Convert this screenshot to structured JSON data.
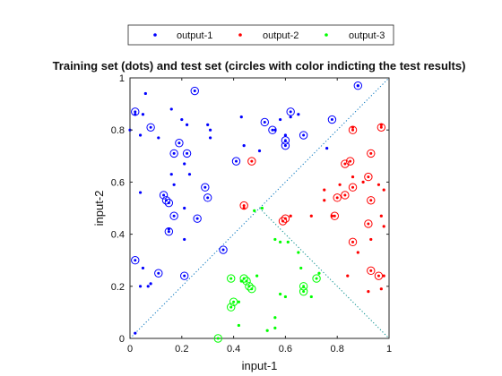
{
  "chart_data": {
    "type": "scatter",
    "title": "Training set (dots) and test set (circles with color indicting the test results)",
    "xlabel": "input-1",
    "ylabel": "input-2",
    "xlim": [
      0,
      1
    ],
    "ylim": [
      0,
      1
    ],
    "xticks": [
      "0",
      "0.2",
      "0.4",
      "0.6",
      "0.8",
      "1"
    ],
    "yticks": [
      "0",
      "0.2",
      "0.4",
      "0.6",
      "0.8",
      "1"
    ],
    "legend_position": "top-center",
    "grid": false,
    "series": [
      {
        "name": "output-1",
        "color": "#0000ff",
        "training": [
          [
            0.0,
            0.8
          ],
          [
            0.02,
            0.86
          ],
          [
            0.05,
            0.86
          ],
          [
            0.06,
            0.94
          ],
          [
            0.04,
            0.78
          ],
          [
            0.11,
            0.77
          ],
          [
            0.16,
            0.88
          ],
          [
            0.17,
            0.59
          ],
          [
            0.16,
            0.63
          ],
          [
            0.2,
            0.84
          ],
          [
            0.22,
            0.82
          ],
          [
            0.21,
            0.67
          ],
          [
            0.23,
            0.63
          ],
          [
            0.21,
            0.5
          ],
          [
            0.21,
            0.38
          ],
          [
            0.3,
            0.82
          ],
          [
            0.31,
            0.77
          ],
          [
            0.31,
            0.8
          ],
          [
            0.15,
            0.42
          ],
          [
            0.04,
            0.56
          ],
          [
            0.05,
            0.27
          ],
          [
            0.08,
            0.21
          ],
          [
            0.04,
            0.2
          ],
          [
            0.07,
            0.2
          ],
          [
            0.02,
            0.02
          ],
          [
            0.43,
            0.85
          ],
          [
            0.44,
            0.74
          ],
          [
            0.5,
            0.72
          ],
          [
            0.56,
            0.8
          ],
          [
            0.58,
            0.84
          ],
          [
            0.6,
            0.78
          ],
          [
            0.62,
            0.85
          ],
          [
            0.65,
            0.86
          ],
          [
            0.76,
            0.73
          ],
          [
            0.88,
            0.97
          ]
        ],
        "test": [
          [
            0.02,
            0.87
          ],
          [
            0.08,
            0.81
          ],
          [
            0.25,
            0.95
          ],
          [
            0.13,
            0.55
          ],
          [
            0.14,
            0.53
          ],
          [
            0.15,
            0.52
          ],
          [
            0.19,
            0.75
          ],
          [
            0.17,
            0.71
          ],
          [
            0.22,
            0.71
          ],
          [
            0.17,
            0.47
          ],
          [
            0.26,
            0.46
          ],
          [
            0.29,
            0.58
          ],
          [
            0.3,
            0.54
          ],
          [
            0.15,
            0.41
          ],
          [
            0.02,
            0.3
          ],
          [
            0.11,
            0.25
          ],
          [
            0.21,
            0.24
          ],
          [
            0.36,
            0.34
          ],
          [
            0.41,
            0.68
          ],
          [
            0.52,
            0.83
          ],
          [
            0.6,
            0.74
          ],
          [
            0.6,
            0.76
          ],
          [
            0.55,
            0.8
          ],
          [
            0.62,
            0.87
          ],
          [
            0.67,
            0.78
          ],
          [
            0.78,
            0.84
          ],
          [
            0.88,
            0.97
          ]
        ]
      },
      {
        "name": "output-2",
        "color": "#ff0000",
        "training": [
          [
            0.98,
            0.57
          ],
          [
            0.97,
            0.47
          ],
          [
            0.98,
            0.43
          ],
          [
            0.98,
            0.24
          ],
          [
            0.97,
            0.19
          ],
          [
            0.92,
            0.18
          ],
          [
            0.84,
            0.24
          ],
          [
            0.88,
            0.33
          ],
          [
            0.93,
            0.38
          ],
          [
            0.9,
            0.6
          ],
          [
            0.86,
            0.62
          ],
          [
            0.81,
            0.59
          ],
          [
            0.75,
            0.57
          ],
          [
            0.78,
            0.47
          ],
          [
            0.75,
            0.53
          ],
          [
            0.7,
            0.47
          ],
          [
            0.62,
            0.47
          ],
          [
            0.97,
            0.82
          ],
          [
            0.86,
            0.81
          ],
          [
            0.44,
            0.5
          ],
          [
            0.96,
            0.59
          ]
        ],
        "test": [
          [
            0.97,
            0.81
          ],
          [
            0.86,
            0.8
          ],
          [
            0.93,
            0.71
          ],
          [
            0.83,
            0.67
          ],
          [
            0.85,
            0.68
          ],
          [
            0.92,
            0.62
          ],
          [
            0.86,
            0.58
          ],
          [
            0.83,
            0.55
          ],
          [
            0.8,
            0.54
          ],
          [
            0.93,
            0.53
          ],
          [
            0.79,
            0.47
          ],
          [
            0.92,
            0.44
          ],
          [
            0.86,
            0.37
          ],
          [
            0.93,
            0.26
          ],
          [
            0.96,
            0.24
          ],
          [
            0.59,
            0.45
          ],
          [
            0.6,
            0.46
          ],
          [
            0.47,
            0.68
          ],
          [
            0.44,
            0.51
          ]
        ]
      },
      {
        "name": "output-3",
        "color": "#00ff00",
        "training": [
          [
            0.48,
            0.49
          ],
          [
            0.51,
            0.5
          ],
          [
            0.56,
            0.38
          ],
          [
            0.58,
            0.37
          ],
          [
            0.61,
            0.37
          ],
          [
            0.65,
            0.33
          ],
          [
            0.66,
            0.27
          ],
          [
            0.42,
            0.14
          ],
          [
            0.42,
            0.05
          ],
          [
            0.49,
            0.24
          ],
          [
            0.56,
            0.08
          ],
          [
            0.58,
            0.17
          ],
          [
            0.6,
            0.16
          ],
          [
            0.56,
            0.04
          ],
          [
            0.43,
            0.22
          ],
          [
            0.7,
            0.16
          ],
          [
            0.73,
            0.25
          ],
          [
            0.53,
            0.03
          ]
        ],
        "test": [
          [
            0.39,
            0.23
          ],
          [
            0.4,
            0.14
          ],
          [
            0.39,
            0.12
          ],
          [
            0.44,
            0.23
          ],
          [
            0.45,
            0.22
          ],
          [
            0.46,
            0.2
          ],
          [
            0.47,
            0.19
          ],
          [
            0.67,
            0.18
          ],
          [
            0.67,
            0.2
          ],
          [
            0.72,
            0.23
          ],
          [
            0.34,
            0.0
          ]
        ]
      }
    ],
    "reference_lines": [
      {
        "style": "dotted",
        "color": "#0072bd",
        "points": [
          [
            0,
            0
          ],
          [
            1,
            1
          ]
        ]
      },
      {
        "style": "dotted",
        "color": "#008c8c",
        "points": [
          [
            0.5,
            0.5
          ],
          [
            1,
            0
          ]
        ]
      }
    ]
  }
}
